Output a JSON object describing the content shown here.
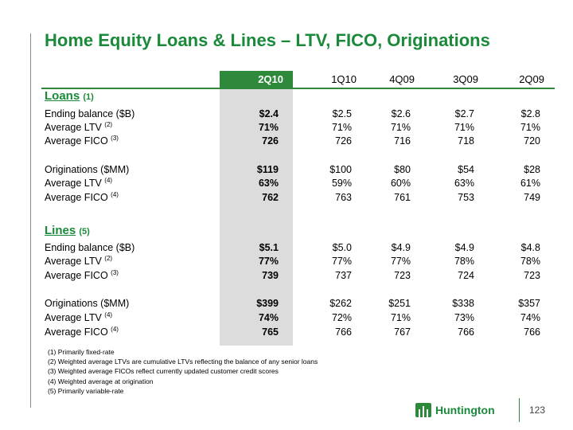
{
  "title": "Home Equity Loans & Lines – LTV, FICO, Originations",
  "columns": [
    "2Q10",
    "1Q10",
    "4Q09",
    "3Q09",
    "2Q09"
  ],
  "loans": {
    "heading": "Loans",
    "heading_note": "(1)",
    "rows": [
      {
        "label": "Ending balance ($B)",
        "note": "",
        "values": [
          "$2.4",
          "$2.5",
          "$2.6",
          "$2.7",
          "$2.8"
        ]
      },
      {
        "label": "Average LTV",
        "note": "(2)",
        "values": [
          "71%",
          "71%",
          "71%",
          "71%",
          "71%"
        ]
      },
      {
        "label": "Average FICO",
        "note": "(3)",
        "values": [
          "726",
          "726",
          "716",
          "718",
          "720"
        ]
      },
      {
        "label": "Originations ($MM)",
        "note": "",
        "values": [
          "$119",
          "$100",
          "$80",
          "$54",
          "$28"
        ]
      },
      {
        "label": "Average LTV",
        "note": "(4)",
        "values": [
          "63%",
          "59%",
          "60%",
          "63%",
          "61%"
        ]
      },
      {
        "label": "Average FICO",
        "note": "(4)",
        "values": [
          "762",
          "763",
          "761",
          "753",
          "749"
        ]
      }
    ]
  },
  "lines": {
    "heading": "Lines",
    "heading_note": "(5)",
    "rows": [
      {
        "label": "Ending balance ($B)",
        "note": "",
        "values": [
          "$5.1",
          "$5.0",
          "$4.9",
          "$4.9",
          "$4.8"
        ]
      },
      {
        "label": "Average LTV",
        "note": "(2)",
        "values": [
          "77%",
          "77%",
          "77%",
          "78%",
          "78%"
        ]
      },
      {
        "label": "Average FICO",
        "note": "(3)",
        "values": [
          "739",
          "737",
          "723",
          "724",
          "723"
        ]
      },
      {
        "label": "Originations ($MM)",
        "note": "",
        "values": [
          "$399",
          "$262",
          "$251",
          "$338",
          "$357"
        ]
      },
      {
        "label": "Average LTV",
        "note": "(4)",
        "values": [
          "74%",
          "72%",
          "71%",
          "73%",
          "74%"
        ]
      },
      {
        "label": "Average FICO",
        "note": "(4)",
        "values": [
          "765",
          "766",
          "767",
          "766",
          "766"
        ]
      }
    ]
  },
  "footnotes": [
    "(1)  Primarily fixed-rate",
    "(2)  Weighted average LTVs are cumulative LTVs reflecting the balance of any senior loans",
    "(3)  Weighted average FICOs reflect currently updated customer credit scores",
    "(4)  Weighted average at origination",
    "(5)  Primarily variable-rate"
  ],
  "logo_text": "Huntington",
  "page_number": "123",
  "colors": {
    "accent": "#2e8a3a",
    "title": "#1a8a3a",
    "highlight_column": "#dcdcdc"
  }
}
